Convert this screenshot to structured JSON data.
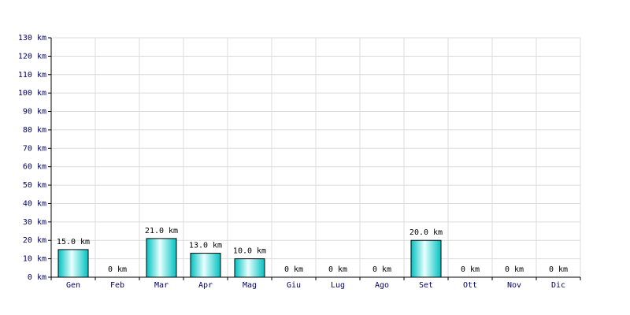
{
  "chart_data": {
    "type": "bar",
    "categories": [
      "Gen",
      "Feb",
      "Mar",
      "Apr",
      "Mag",
      "Giu",
      "Lug",
      "Ago",
      "Set",
      "Ott",
      "Nov",
      "Dic"
    ],
    "values": [
      15,
      0,
      21,
      13,
      10,
      0,
      0,
      0,
      20,
      0,
      0,
      0
    ],
    "value_labels": [
      "15.0 km",
      "0 km",
      "21.0 km",
      "13.0 km",
      "10.0 km",
      "0 km",
      "0 km",
      "0 km",
      "20.0 km",
      "0 km",
      "0 km",
      "0 km"
    ],
    "color": "#00c0c0",
    "ylim": [
      0,
      130
    ],
    "yticks": [
      {
        "value": 0,
        "label": "0 km"
      },
      {
        "value": 10,
        "label": "10 km"
      },
      {
        "value": 20,
        "label": "20 km"
      },
      {
        "value": 30,
        "label": "30 km"
      },
      {
        "value": 40,
        "label": "40 km"
      },
      {
        "value": 50,
        "label": "50 km"
      },
      {
        "value": 60,
        "label": "60 km"
      },
      {
        "value": 70,
        "label": "70 km"
      },
      {
        "value": 80,
        "label": "80 km"
      },
      {
        "value": 90,
        "label": "90 km"
      },
      {
        "value": 100,
        "label": "100 km"
      },
      {
        "value": 110,
        "label": "110 km"
      },
      {
        "value": 120,
        "label": "120 km"
      },
      {
        "value": 130,
        "label": "130 km"
      }
    ],
    "grid": true
  }
}
